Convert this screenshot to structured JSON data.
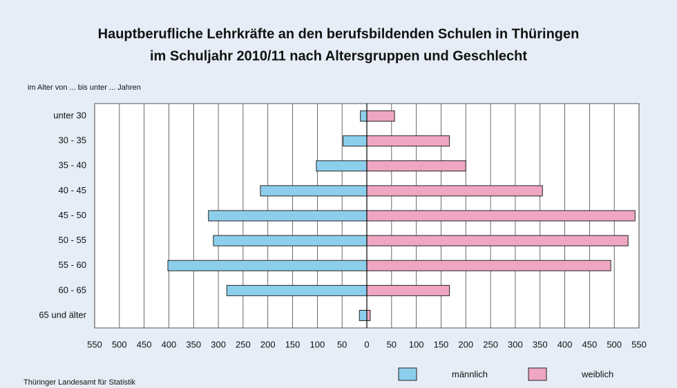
{
  "chart_data": {
    "type": "pyramid",
    "title": [
      "Hauptberufliche Lehrkräfte an den berufsbildenden Schulen in Thüringen",
      "im Schuljahr 2010/11 nach Altersgruppen und Geschlecht"
    ],
    "y_label": "im Alter von ... bis unter ... Jahren",
    "source": "Thüringer Landesamt für Statistik",
    "categories": [
      "unter 30",
      "30 - 35",
      "35 - 40",
      "40 - 45",
      "45 - 50",
      "50 - 55",
      "55 - 60",
      "60 - 65",
      "65 und älter"
    ],
    "series": [
      {
        "name": "männlich",
        "color": "#8ccfec",
        "values": [
          -13,
          -48,
          -102,
          -215,
          -320,
          -310,
          -402,
          -283,
          -15
        ]
      },
      {
        "name": "weiblich",
        "color": "#eea6c2",
        "values": [
          56,
          167,
          200,
          355,
          542,
          528,
          493,
          167,
          7
        ]
      }
    ],
    "xlim": [
      -550,
      550
    ],
    "xticks": [
      {
        "value": -550,
        "label": "550"
      },
      {
        "value": -500,
        "label": "500"
      },
      {
        "value": -450,
        "label": "450"
      },
      {
        "value": -400,
        "label": "400"
      },
      {
        "value": -350,
        "label": "350"
      },
      {
        "value": -300,
        "label": "300"
      },
      {
        "value": -250,
        "label": "250"
      },
      {
        "value": -200,
        "label": "200"
      },
      {
        "value": -150,
        "label": "150"
      },
      {
        "value": -100,
        "label": "100"
      },
      {
        "value": -50,
        "label": "50"
      },
      0,
      50,
      100,
      150,
      200,
      250,
      300,
      350,
      400,
      450,
      500,
      550
    ],
    "grid": true
  }
}
